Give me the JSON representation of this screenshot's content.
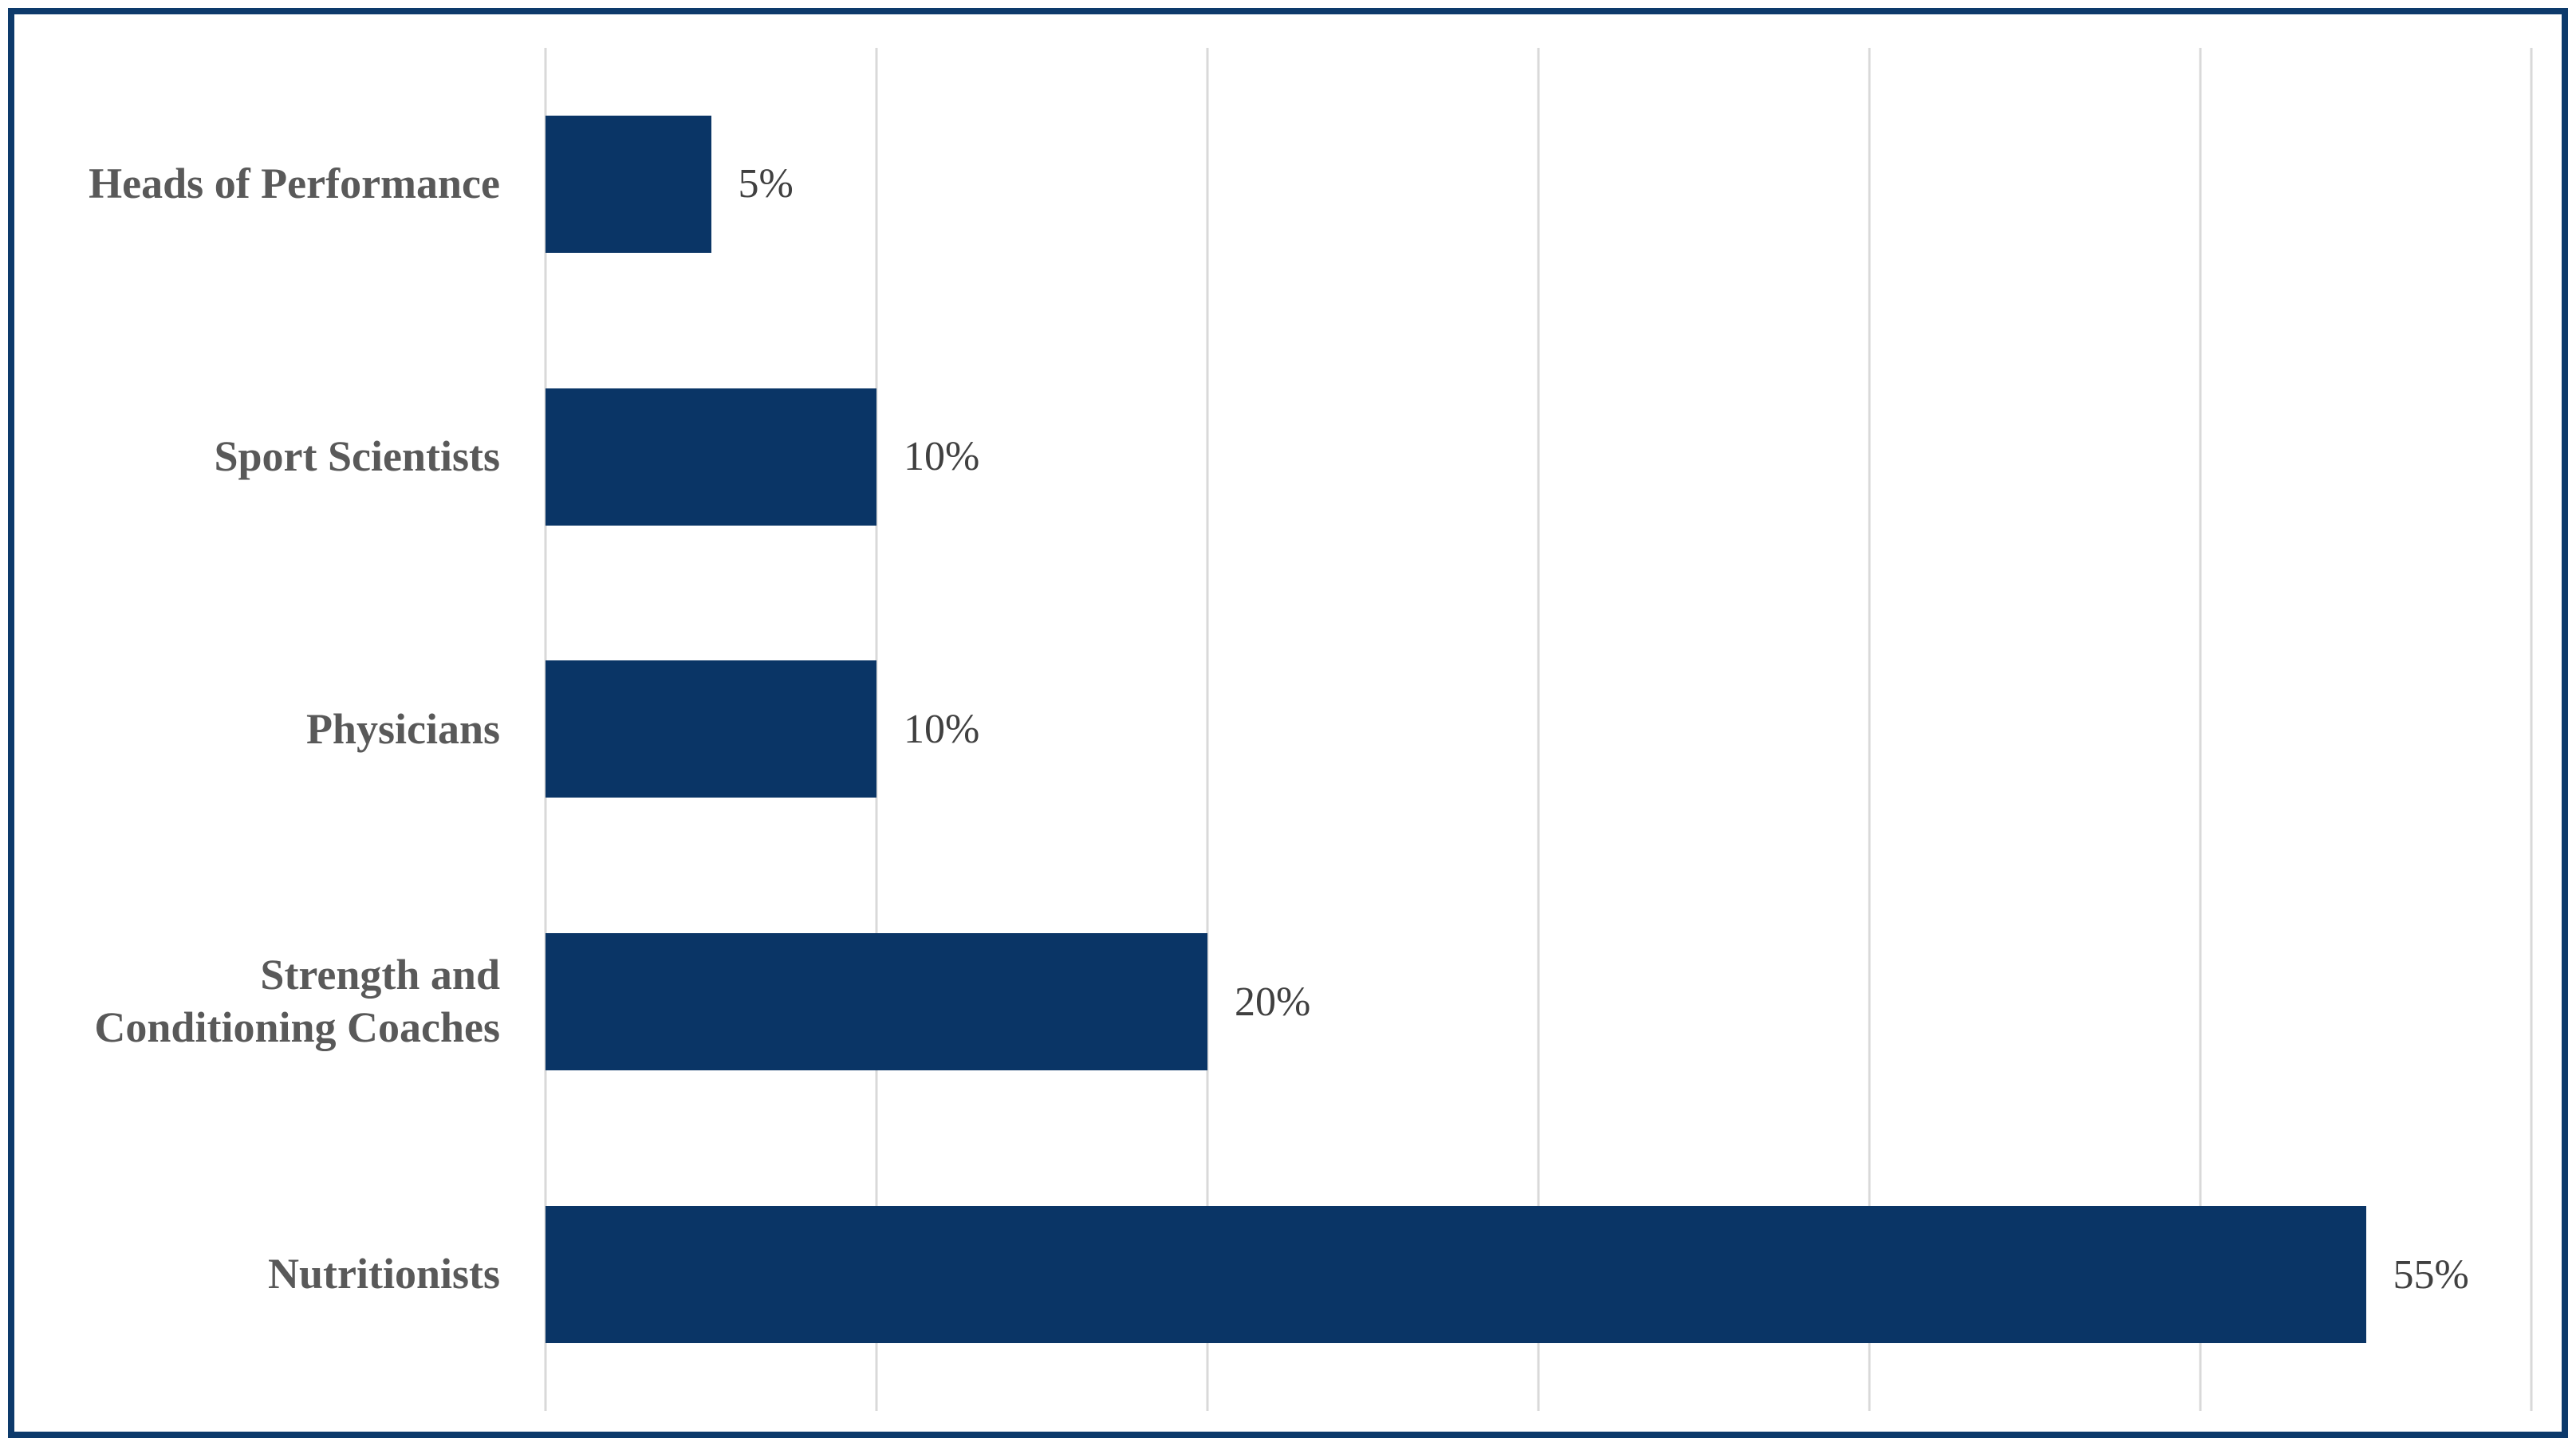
{
  "chart_data": {
    "type": "bar",
    "orientation": "horizontal",
    "title": "",
    "xlabel": "",
    "ylabel": "",
    "categories": [
      "Heads of Performance",
      "Sport Scientists",
      "Physicians",
      "Strength and Conditioning Coaches",
      "Nutritionists"
    ],
    "values": [
      5,
      10,
      10,
      20,
      55
    ],
    "data_labels": [
      "5%",
      "10%",
      "10%",
      "20%",
      "55%"
    ],
    "xlim": [
      0,
      60
    ],
    "gridline_step": 10,
    "grid": true,
    "legend": false,
    "rows": [
      {
        "label": "Heads of Performance",
        "value": 5,
        "value_label": "5%"
      },
      {
        "label": "Sport Scientists",
        "value": 10,
        "value_label": "10%"
      },
      {
        "label": "Physicians",
        "value": 10,
        "value_label": "10%"
      },
      {
        "label": "Strength and\nConditioning Coaches",
        "value": 20,
        "value_label": "20%"
      },
      {
        "label": "Nutritionists",
        "value": 55,
        "value_label": "55%"
      }
    ],
    "colors": {
      "bar": "#0a3566",
      "frame_border": "#0d3a6b",
      "gridline": "#d9d9d9",
      "category_label": "#595959",
      "value_label": "#404040",
      "background": "#ffffff"
    }
  }
}
